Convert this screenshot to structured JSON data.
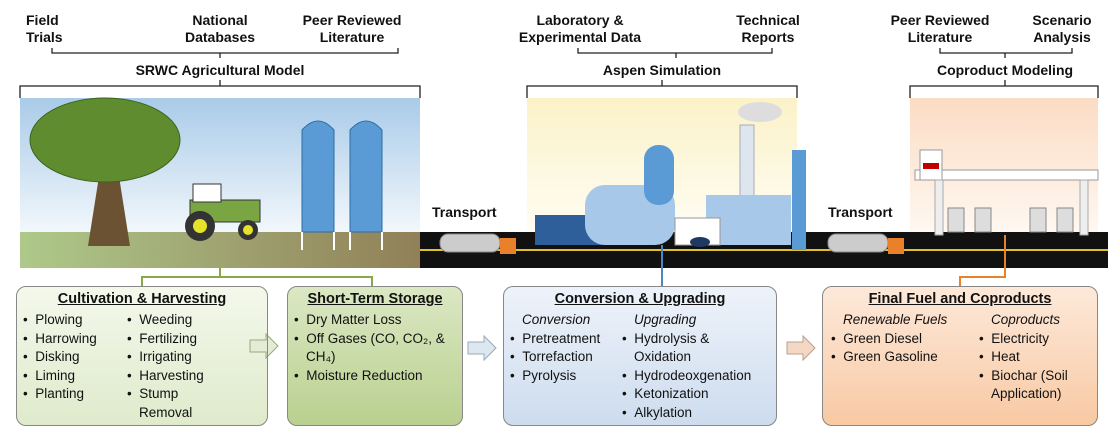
{
  "models": [
    {
      "sources": [
        "Field Trials",
        "National Databases",
        "Peer Reviewed Literature"
      ],
      "name": "SRWC Agricultural Model"
    },
    {
      "sources": [
        "Laboratory & Experimental Data",
        "Technical Reports"
      ],
      "name": "Aspen Simulation"
    },
    {
      "sources": [
        "Peer Reviewed Literature",
        "Scenario Analysis"
      ],
      "name": "Coproduct Modeling"
    }
  ],
  "transport": [
    "Transport",
    "Transport"
  ],
  "stages": [
    {
      "title": "Cultivation & Harvesting",
      "columns": [
        {
          "items": [
            "Plowing",
            "Harrowing",
            "Disking",
            "Liming",
            "Planting"
          ]
        },
        {
          "items": [
            "Weeding",
            "Fertilizing",
            "Irrigating",
            "Harvesting",
            "Stump Removal"
          ]
        }
      ]
    },
    {
      "title": "Short-Term Storage",
      "columns": [
        {
          "items": [
            "Dry Matter Loss",
            "Off Gases (CO, CO₂, & CH₄)",
            "Moisture Reduction"
          ]
        }
      ]
    },
    {
      "title": "Conversion & Upgrading",
      "columns": [
        {
          "heading": "Conversion",
          "items": [
            "Pretreatment",
            "Torrefaction",
            "Pyrolysis"
          ]
        },
        {
          "heading": "Upgrading",
          "items": [
            "Hydrolysis & Oxidation",
            "Hydrodeoxgenation",
            "Ketonization",
            "Alkylation"
          ]
        }
      ]
    },
    {
      "title": "Final Fuel and Coproducts",
      "columns": [
        {
          "heading": "Renewable Fuels",
          "items": [
            "Green Diesel",
            "Green Gasoline"
          ]
        },
        {
          "heading": "Coproducts",
          "items": [
            "Electricity",
            "Heat",
            "Biochar (Soil Application)"
          ]
        }
      ]
    }
  ]
}
